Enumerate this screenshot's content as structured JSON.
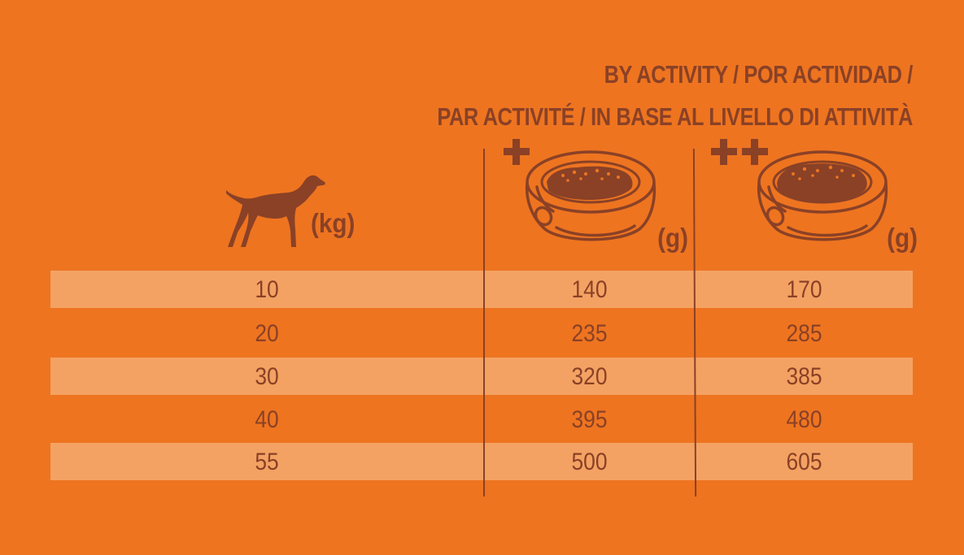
{
  "header": {
    "line1": "BY ACTIVITY / POR ACTIVIDAD /",
    "line2": "PAR ACTIVITÉ / IN BASE AL LIVELLO DI ATTIVITÀ"
  },
  "columns": {
    "weight_unit": "(kg)",
    "moderate_symbol": "+",
    "high_symbol": "++",
    "moderate_unit": "(g)",
    "high_unit": "(g)"
  },
  "icons": {
    "dog": "dog-icon",
    "bowl": "food-bowl-icon"
  },
  "colors": {
    "background": "#ee7420",
    "band": "#f4a263",
    "text": "#8a4126"
  },
  "rows": [
    {
      "weight": "10",
      "moderate": "140",
      "high": "170"
    },
    {
      "weight": "20",
      "moderate": "235",
      "high": "285"
    },
    {
      "weight": "30",
      "moderate": "320",
      "high": "385"
    },
    {
      "weight": "40",
      "moderate": "395",
      "high": "480"
    },
    {
      "weight": "55",
      "moderate": "500",
      "high": "605"
    }
  ]
}
